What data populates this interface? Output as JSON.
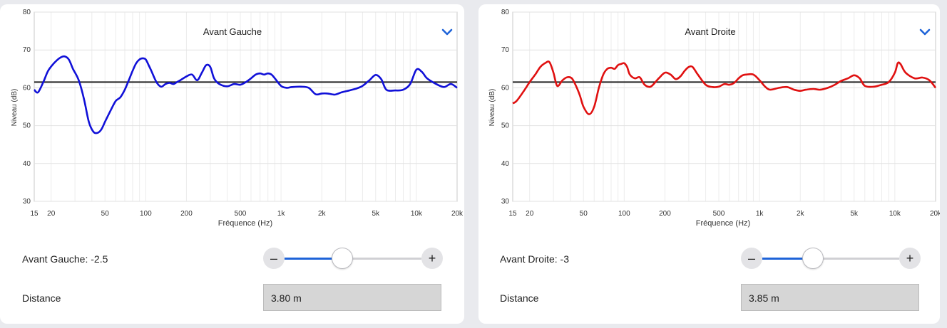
{
  "panels": [
    {
      "id": "left",
      "chart_data": {
        "type": "line",
        "title": "Avant Gauche",
        "xlabel": "Fréquence (Hz)",
        "ylabel": "Niveau (dB)",
        "xscale": "log",
        "xlim": [
          15,
          20000
        ],
        "ylim": [
          30,
          80
        ],
        "x_tick_labels": [
          "15",
          "20",
          "50",
          "100",
          "200",
          "500",
          "1k",
          "2k",
          "5k",
          "10k",
          "20k"
        ],
        "x_tick_values": [
          15,
          20,
          50,
          100,
          200,
          500,
          1000,
          2000,
          5000,
          10000,
          20000
        ],
        "y_ticks": [
          30,
          40,
          50,
          60,
          70,
          80
        ],
        "grid": true,
        "target_level": 61.5,
        "series": [
          {
            "color": "#1010d8",
            "x": [
              15,
              16,
              17.5,
              19,
              21,
              23,
              25,
              27,
              29,
              32,
              35,
              38,
              41,
              44,
              47,
              50,
              55,
              60,
              65,
              70,
              75,
              80,
              85,
              90,
              95,
              100,
              105,
              110,
              120,
              130,
              140,
              150,
              160,
              170,
              180,
              200,
              220,
              240,
              260,
              280,
              300,
              320,
              350,
              400,
              450,
              500,
              550,
              600,
              650,
              700,
              750,
              800,
              850,
              900,
              1000,
              1100,
              1200,
              1400,
              1600,
              1800,
              2000,
              2200,
              2500,
              2800,
              3200,
              3600,
              4000,
              4500,
              5000,
              5500,
              6000,
              7000,
              8000,
              9000,
              10000,
              11000,
              12000,
              14000,
              16000,
              18000,
              20000
            ],
            "y": [
              59.5,
              58.8,
              61.5,
              64.5,
              66.5,
              67.8,
              68.3,
              67.5,
              65,
              62,
              57,
              51,
              48.4,
              48.1,
              49,
              51,
              54,
              56.5,
              57.5,
              59.5,
              62,
              64.5,
              66.5,
              67.5,
              67.8,
              67.5,
              66,
              64.5,
              61.5,
              60.3,
              61,
              61.3,
              61,
              61.5,
              62,
              63,
              63.5,
              62,
              64,
              66,
              65.5,
              62.5,
              61,
              60.4,
              61,
              60.8,
              61.5,
              62.5,
              63.5,
              63.8,
              63.5,
              63.8,
              63.5,
              62.5,
              60.5,
              60,
              60.2,
              60.3,
              60,
              58.3,
              58.5,
              58.5,
              58.2,
              58.8,
              59.3,
              59.8,
              60.5,
              62,
              63.4,
              62.3,
              59.5,
              59.3,
              59.5,
              61,
              64.8,
              64.2,
              62.5,
              61,
              60.2,
              61,
              60
            ]
          }
        ]
      },
      "gain_label": "Avant Gauche: -2.5",
      "slider_level": 0.42,
      "distance_label": "Distance",
      "distance_value": "3.80 m"
    },
    {
      "id": "right",
      "chart_data": {
        "type": "line",
        "title": "Avant Droite",
        "xlabel": "Fréquence (Hz)",
        "ylabel": "Niveau (dB)",
        "xscale": "log",
        "xlim": [
          15,
          20000
        ],
        "ylim": [
          30,
          80
        ],
        "x_tick_labels": [
          "15",
          "20",
          "50",
          "100",
          "200",
          "500",
          "1k",
          "2k",
          "5k",
          "10k",
          "20k"
        ],
        "x_tick_values": [
          15,
          20,
          50,
          100,
          200,
          500,
          1000,
          2000,
          5000,
          10000,
          20000
        ],
        "y_ticks": [
          30,
          40,
          50,
          60,
          70,
          80
        ],
        "grid": true,
        "target_level": 61.5,
        "series": [
          {
            "color": "#e01010",
            "x": [
              15,
              16,
              18,
              20,
              22,
              24,
              26,
              28,
              30,
              32,
              35,
              38,
              41,
              44,
              47,
              50,
              55,
              60,
              65,
              70,
              75,
              80,
              85,
              90,
              95,
              100,
              105,
              110,
              120,
              130,
              140,
              150,
              160,
              180,
              200,
              220,
              240,
              260,
              280,
              300,
              320,
              350,
              400,
              450,
              500,
              550,
              600,
              650,
              700,
              750,
              800,
              900,
              1000,
              1100,
              1200,
              1400,
              1600,
              1800,
              2000,
              2200,
              2500,
              2800,
              3200,
              3600,
              4000,
              4500,
              5000,
              5500,
              6000,
              7000,
              8000,
              9000,
              10000,
              10500,
              11000,
              12000,
              14000,
              16000,
              18000,
              20000
            ],
            "y": [
              55.9,
              56.5,
              59,
              61.5,
              63.5,
              65.5,
              66.5,
              66.8,
              64,
              60.5,
              62,
              62.8,
              62.5,
              60.5,
              58,
              55,
              53,
              55,
              60,
              63.5,
              65,
              65.3,
              65,
              66,
              66.3,
              66.5,
              65.5,
              63.5,
              62.5,
              62.8,
              61,
              60.3,
              60.5,
              62.5,
              64,
              63.5,
              62.3,
              63,
              64.5,
              65.5,
              65.5,
              63.5,
              60.8,
              60.2,
              60.3,
              61,
              60.8,
              61.3,
              62.5,
              63.3,
              63.5,
              63.5,
              62,
              60.3,
              59.5,
              60,
              60.2,
              59.5,
              59.2,
              59.5,
              59.7,
              59.5,
              60,
              60.8,
              61.8,
              62.5,
              63.3,
              62.5,
              60.5,
              60.3,
              60.8,
              61.5,
              64,
              66.5,
              66.3,
              64,
              62.5,
              62.7,
              62,
              60
            ]
          }
        ]
      },
      "gain_label": "Avant Droite: -3",
      "slider_level": 0.37,
      "distance_label": "Distance",
      "distance_value": "3.85 m"
    }
  ],
  "slider_buttons": {
    "minus": "–",
    "plus": "+"
  },
  "accent_color": "#1e63d8",
  "icons": {
    "dropdown": "chevron-down-icon"
  }
}
